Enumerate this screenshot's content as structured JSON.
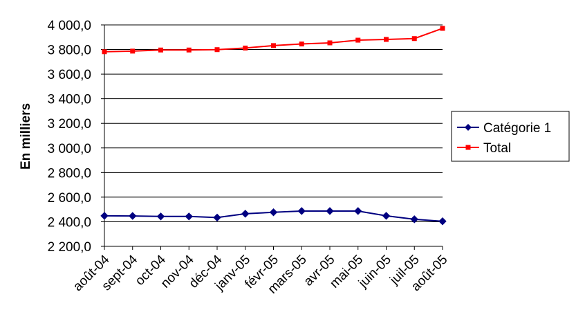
{
  "chart_data": {
    "type": "line",
    "title": "",
    "xlabel": "",
    "ylabel": "En milliers",
    "categories": [
      "août-04",
      "sept-04",
      "oct-04",
      "nov-04",
      "déc-04",
      "janv-05",
      "févr-05",
      "mars-05",
      "avr-05",
      "mai-05",
      "juin-05",
      "juil-05",
      "août-05"
    ],
    "ylim": [
      2200,
      4000
    ],
    "ytick_values": [
      2200,
      2400,
      2600,
      2800,
      3000,
      3200,
      3400,
      3600,
      3800,
      4000
    ],
    "ytick_labels": [
      "2 200,0",
      "2 400,0",
      "2 600,0",
      "2 800,0",
      "3 000,0",
      "3 200,0",
      "3 400,0",
      "3 600,0",
      "3 800,0",
      "4 000,0"
    ],
    "grid": "horizontal",
    "legend_position": "right",
    "series": [
      {
        "name": "Catégorie 1",
        "color": "#000080",
        "marker": "diamond",
        "values": [
          2448,
          2447,
          2443,
          2443,
          2434,
          2465,
          2477,
          2487,
          2487,
          2487,
          2448,
          2420,
          2404
        ]
      },
      {
        "name": "Total",
        "color": "#ff0000",
        "marker": "square",
        "values": [
          3782,
          3787,
          3796,
          3796,
          3799,
          3812,
          3832,
          3845,
          3854,
          3876,
          3882,
          3889,
          3972
        ]
      }
    ]
  }
}
